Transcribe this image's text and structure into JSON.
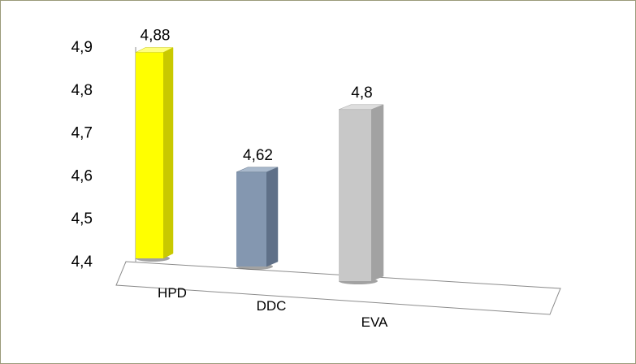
{
  "chart_data": {
    "type": "bar",
    "categories": [
      "HPD",
      "DDC",
      "EVA"
    ],
    "values": [
      4.88,
      4.62,
      4.8
    ],
    "data_labels": [
      "4,88",
      "4,62",
      "4,8"
    ],
    "y_ticks": [
      4.4,
      4.5,
      4.6,
      4.7,
      4.8,
      4.9
    ],
    "y_tick_labels": [
      "4,4",
      "4,5",
      "4,6",
      "4,7",
      "4,8",
      "4,9"
    ],
    "ylim": [
      4.4,
      4.9
    ],
    "title": "",
    "xlabel": "",
    "ylabel": "",
    "legend": "none",
    "grid": false,
    "style": "3d-column",
    "colors": {
      "HPD": {
        "front": "#ffff00",
        "side": "#c9c900",
        "top": "#ffff80"
      },
      "DDC": {
        "front": "#8497b0",
        "side": "#5f7088",
        "top": "#a9b9cc"
      },
      "EVA": {
        "front": "#c8c8c8",
        "side": "#a2a2a2",
        "top": "#dedede"
      },
      "border": "#9a9a7a",
      "axis": "#8c8c8c",
      "text": "#000000"
    }
  }
}
